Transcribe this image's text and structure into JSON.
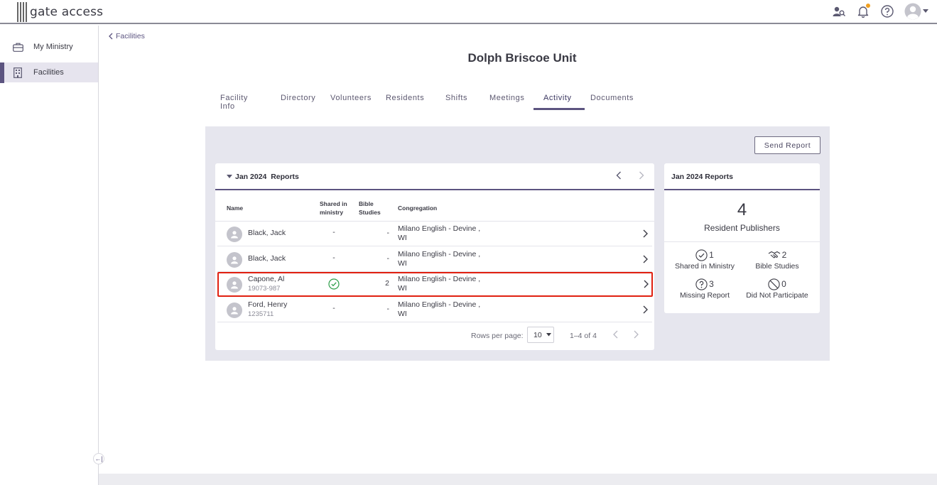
{
  "app": {
    "logo_text": "gate access"
  },
  "sidebar": {
    "items": [
      {
        "label": "My Ministry",
        "icon": "briefcase-icon"
      },
      {
        "label": "Facilities",
        "icon": "building-icon",
        "active": true
      }
    ],
    "collapse_glyph": "←|"
  },
  "breadcrumb": {
    "label": "Facilities"
  },
  "page": {
    "title": "Dolph Briscoe Unit"
  },
  "tabs": [
    {
      "label": "Facility Info"
    },
    {
      "label": "Directory"
    },
    {
      "label": "Volunteers"
    },
    {
      "label": "Residents"
    },
    {
      "label": "Shifts"
    },
    {
      "label": "Meetings"
    },
    {
      "label": "Activity",
      "active": true
    },
    {
      "label": "Documents"
    }
  ],
  "actions": {
    "send_report": "Send Report"
  },
  "reports_card": {
    "title": "Jan 2024  Reports",
    "columns": {
      "name": "Name",
      "shared_1": "Shared in",
      "shared_2": "ministry",
      "bible_1": "Bible",
      "bible_2": "Studies",
      "congregation": "Congregation"
    },
    "rows": [
      {
        "name": "Black, Jack",
        "id": "",
        "shared": "-",
        "bible": "-",
        "cong_1": "Milano English - Devine ,",
        "cong_2": "WI",
        "highlighted": false
      },
      {
        "name": "Black, Jack",
        "id": "",
        "shared": "-",
        "bible": "-",
        "cong_1": "Milano English - Devine ,",
        "cong_2": "WI",
        "highlighted": false
      },
      {
        "name": "Capone, Al",
        "id": "19073-987",
        "shared": "check",
        "bible": "2",
        "cong_1": "Milano English - Devine ,",
        "cong_2": "WI",
        "highlighted": true
      },
      {
        "name": "Ford, Henry",
        "id": "1235711",
        "shared": "-",
        "bible": "-",
        "cong_1": "Milano English - Devine ,",
        "cong_2": "WI",
        "highlighted": false
      }
    ],
    "pagination": {
      "rows_per_page_label": "Rows per page:",
      "rows_per_page": "10",
      "range": "1–4 of 4"
    }
  },
  "summary_card": {
    "title": "Jan 2024 Reports",
    "total": "4",
    "total_label": "Resident Publishers",
    "stats": [
      {
        "value": "1",
        "label": "Shared in Ministry",
        "icon": "check-circle-icon"
      },
      {
        "value": "2",
        "label": "Bible Studies",
        "icon": "handshake-icon"
      },
      {
        "value": "3",
        "label": "Missing Report",
        "icon": "question-circle-icon"
      },
      {
        "value": "0",
        "label": "Did Not Participate",
        "icon": "prohibited-icon"
      }
    ]
  },
  "colors": {
    "accent": "#5c5480",
    "highlight": "#e02010",
    "success": "#2e9e4a",
    "notification": "#f0a020"
  }
}
